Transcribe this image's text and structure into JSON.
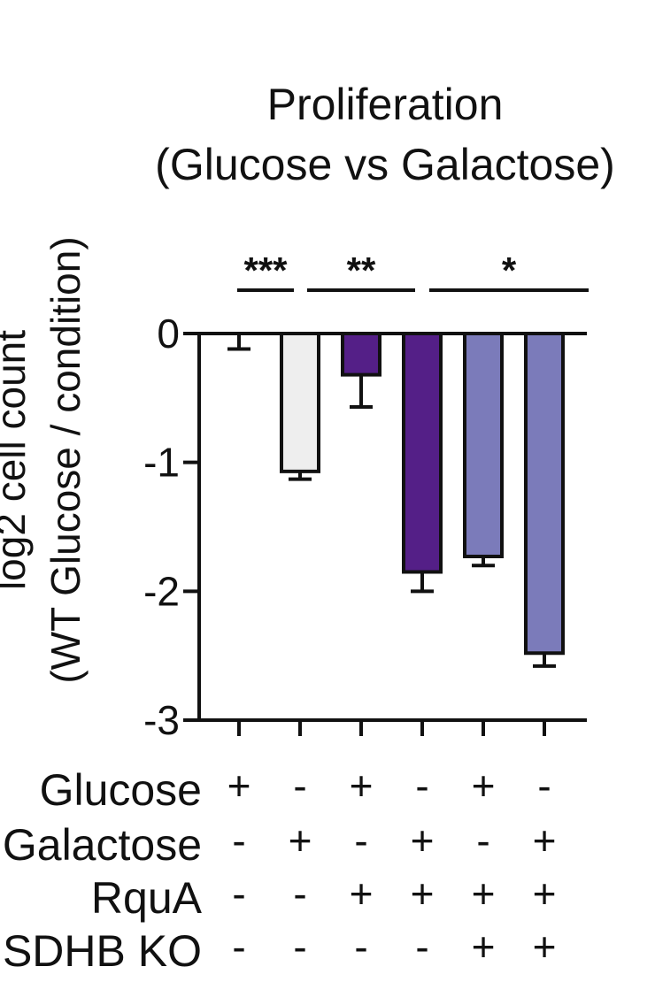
{
  "chart_data": {
    "type": "bar",
    "title_lines": [
      "Proliferation",
      "(Glucose vs Galactose)"
    ],
    "ylabel_lines": [
      "log2 cell count",
      "(WT Glucose / condition)"
    ],
    "ylim": [
      -3,
      0
    ],
    "yticks": [
      "0",
      "-1",
      "-2",
      "-3"
    ],
    "ytick_values": [
      0,
      -1,
      -2,
      -3
    ],
    "values": [
      0,
      -1.07,
      -0.32,
      -1.85,
      -1.73,
      -2.48
    ],
    "errors": [
      0.12,
      0.06,
      0.25,
      0.15,
      0.07,
      0.1
    ],
    "bar_colors": [
      "#ffffff",
      "#eeeeee",
      "#541f87",
      "#541f87",
      "#7b7bba",
      "#7b7bba"
    ],
    "significance": [
      {
        "label": "***",
        "from": 0,
        "to": 1
      },
      {
        "label": "**",
        "from": 1,
        "to": 3
      },
      {
        "label": "*",
        "from": 3,
        "to": 5
      }
    ],
    "conditions": [
      {
        "label": "Glucose",
        "signs": [
          "+",
          "-",
          "+",
          "-",
          "+",
          "-"
        ]
      },
      {
        "label": "Galactose",
        "signs": [
          "-",
          "+",
          "-",
          "+",
          "-",
          "+"
        ]
      },
      {
        "label": "RquA",
        "signs": [
          "-",
          "-",
          "+",
          "+",
          "+",
          "+"
        ]
      },
      {
        "label": "SDHB KO",
        "signs": [
          "-",
          "-",
          "-",
          "-",
          "+",
          "+"
        ]
      }
    ]
  }
}
